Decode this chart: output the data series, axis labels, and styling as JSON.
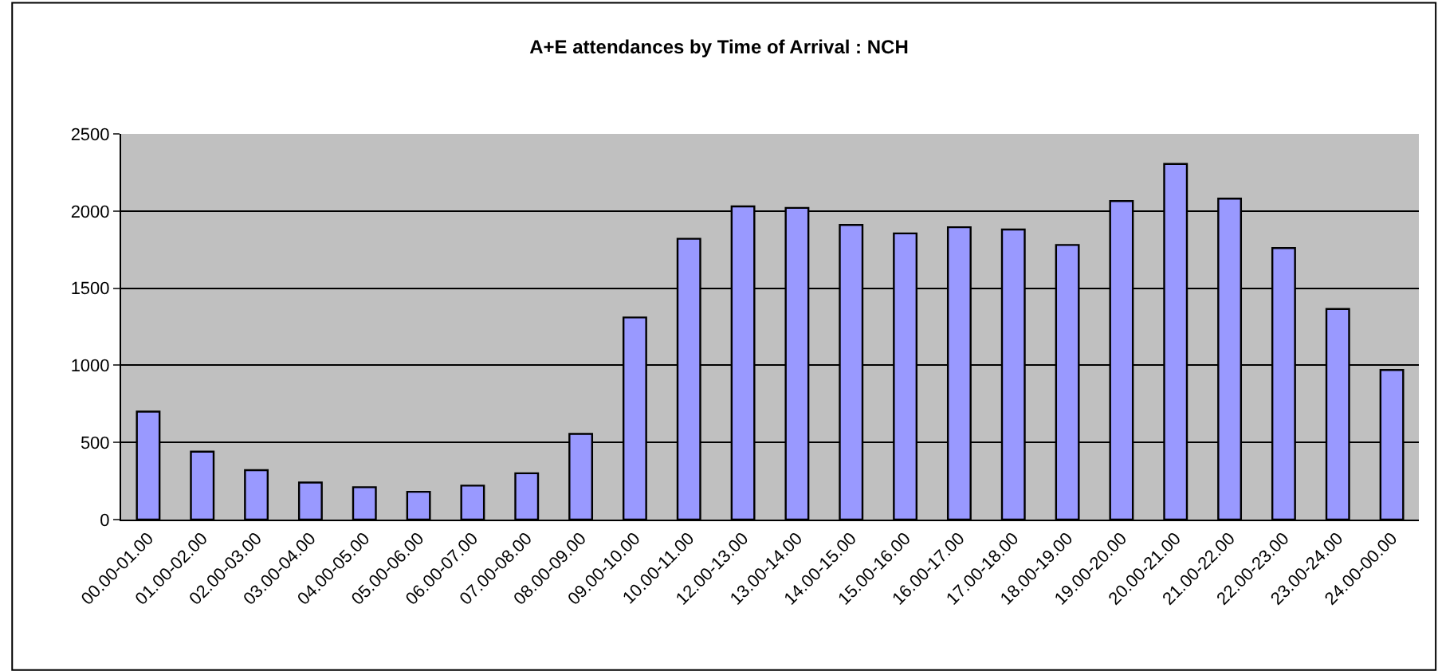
{
  "chart_data": {
    "type": "bar",
    "title": "A+E attendances by Time of Arrival : NCH",
    "categories": [
      "00.00-01.00",
      "01.00-02.00",
      "02.00-03.00",
      "03.00-04.00",
      "04.00-05.00",
      "05.00-06.00",
      "06.00-07.00",
      "07.00-08.00",
      "08.00-09.00",
      "09.00-10.00",
      "10.00-11.00",
      "12.00-13.00",
      "13.00-14.00",
      "14.00-15.00",
      "15.00-16.00",
      "16.00-17.00",
      "17.00-18.00",
      "18.00-19.00",
      "19.00-20.00",
      "20.00-21.00",
      "21.00-22.00",
      "22.00-23.00",
      "23.00-24.00",
      "24.00-00.00"
    ],
    "values": [
      700,
      440,
      320,
      240,
      210,
      180,
      220,
      300,
      555,
      1310,
      1820,
      2030,
      2020,
      1910,
      1855,
      1895,
      1880,
      1780,
      2065,
      2305,
      2080,
      1760,
      1365,
      970
    ],
    "color": "#9999ff",
    "ylim": [
      0,
      2500
    ],
    "yticks": [
      0,
      500,
      1000,
      1500,
      2000,
      2500
    ],
    "grid": "y",
    "legend": false
  }
}
